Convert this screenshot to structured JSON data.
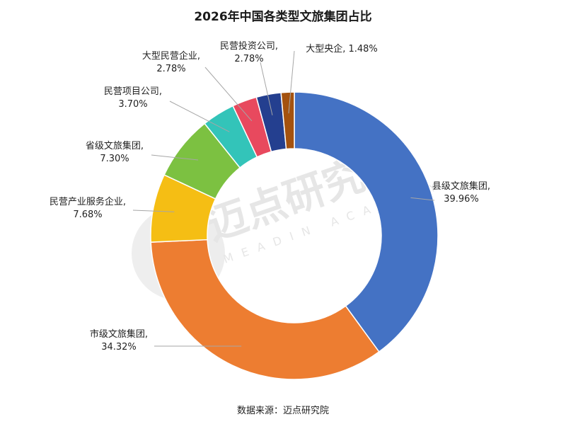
{
  "chart_data": {
    "type": "pie",
    "donut": true,
    "title": "2026年中国各类型文旅集团占比",
    "slices": [
      {
        "label": "县级文旅集团",
        "value": 39.96,
        "display": "39.96%",
        "color": "#4472c4"
      },
      {
        "label": "市级文旅集团",
        "value": 34.32,
        "display": "34.32%",
        "color": "#ed7d31"
      },
      {
        "label": "民营产业服务企业",
        "value": 7.68,
        "display": "7.68%",
        "color": "#f5be14"
      },
      {
        "label": "省级文旅集团",
        "value": 7.3,
        "display": "7.30%",
        "color": "#7cc141"
      },
      {
        "label": "民营项目公司",
        "value": 3.7,
        "display": "3.70%",
        "color": "#33c4b9"
      },
      {
        "label": "大型民营企业",
        "value": 2.78,
        "display": "2.78%",
        "color": "#e8495e"
      },
      {
        "label": "民营投资公司",
        "value": 2.78,
        "display": "2.78%",
        "color": "#243f8f"
      },
      {
        "label": "大型央企",
        "value": 1.48,
        "display": "1.48%",
        "color": "#a4520f"
      }
    ]
  },
  "source": "数据来源：迈点研究院",
  "watermark": {
    "text": "迈点研究院",
    "subtext": "MEADIN ACADEMY"
  }
}
